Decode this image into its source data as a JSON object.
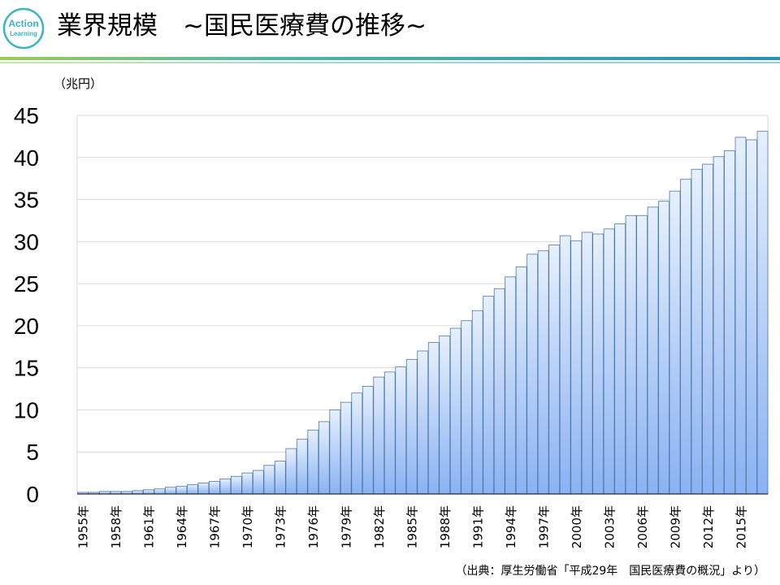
{
  "header": {
    "title": "業界規模　~国民医療費の推移~",
    "logo_text": [
      "Action",
      "Learning"
    ],
    "logo_color": "#3bb3c3"
  },
  "source_note": "（出典：厚生労働省「平成29年　国民医療費の概況」より）",
  "colors": {
    "bar_top": "#e6f0fc",
    "bar_bottom": "#8ab2f2",
    "bar_stroke": "#4f77aa",
    "grid": "#d9d9d9"
  },
  "chart_data": {
    "type": "bar",
    "title": "",
    "ylabel": "（兆円）",
    "xlabel": "",
    "ylim": [
      0,
      45
    ],
    "yticks": [
      0,
      5,
      10,
      15,
      20,
      25,
      30,
      35,
      40,
      45
    ],
    "x_tick_every": 3,
    "category_suffix": "年",
    "categories": [
      1955,
      1956,
      1957,
      1958,
      1959,
      1960,
      1961,
      1962,
      1963,
      1964,
      1965,
      1966,
      1967,
      1968,
      1969,
      1970,
      1971,
      1972,
      1973,
      1974,
      1975,
      1976,
      1977,
      1978,
      1979,
      1980,
      1981,
      1982,
      1983,
      1984,
      1985,
      1986,
      1987,
      1988,
      1989,
      1990,
      1991,
      1992,
      1993,
      1994,
      1995,
      1996,
      1997,
      1998,
      1999,
      2000,
      2001,
      2002,
      2003,
      2004,
      2005,
      2006,
      2007,
      2008,
      2009,
      2010,
      2011,
      2012,
      2013,
      2014,
      2015,
      2016,
      2017
    ],
    "values": [
      0.2,
      0.2,
      0.3,
      0.3,
      0.3,
      0.4,
      0.5,
      0.6,
      0.8,
      0.9,
      1.1,
      1.3,
      1.5,
      1.8,
      2.1,
      2.5,
      2.8,
      3.4,
      3.9,
      5.4,
      6.5,
      7.6,
      8.6,
      10.0,
      10.9,
      12.0,
      12.8,
      13.9,
      14.5,
      15.1,
      16.0,
      17.0,
      18.0,
      18.8,
      19.7,
      20.6,
      21.8,
      23.5,
      24.4,
      25.8,
      27.0,
      28.5,
      28.9,
      29.6,
      30.7,
      30.1,
      31.1,
      30.9,
      31.5,
      32.1,
      33.1,
      33.1,
      34.1,
      34.8,
      36.0,
      37.4,
      38.6,
      39.2,
      40.1,
      40.8,
      42.4,
      42.1,
      43.1
    ]
  }
}
